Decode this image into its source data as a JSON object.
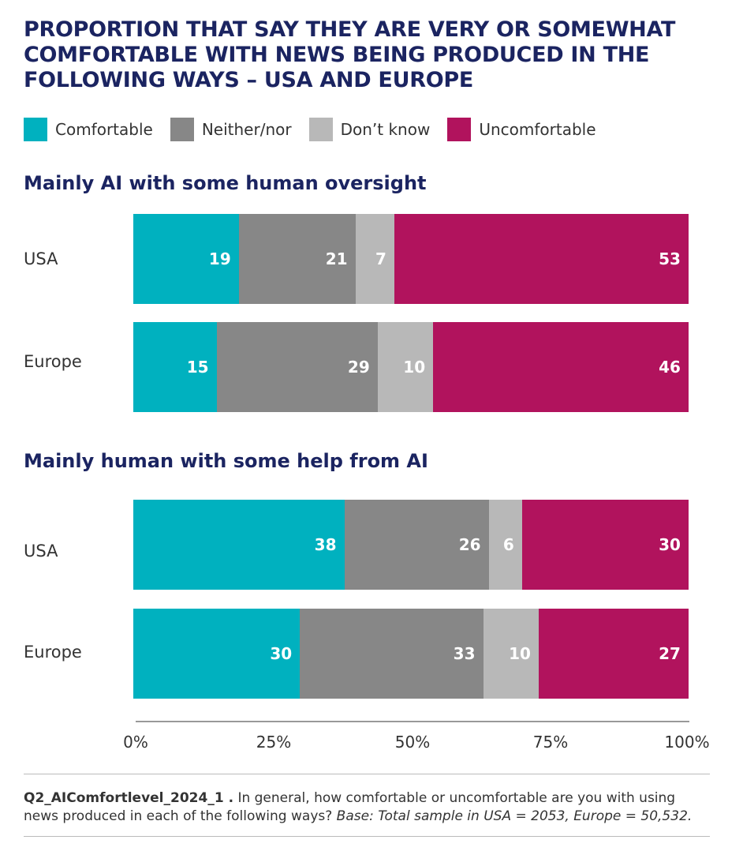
{
  "chart_data": {
    "type": "bar",
    "orientation": "horizontal",
    "stacked": true,
    "title": "PROPORTION THAT SAY THEY ARE VERY OR SOMEWHAT COMFORTABLE WITH NEWS BEING PRODUCED IN THE FOLLOWING WAYS – USA AND EUROPE",
    "legend": [
      {
        "name": "Comfortable",
        "color": "#00b1bf"
      },
      {
        "name": "Neither/nor",
        "color": "#878787"
      },
      {
        "name": "Don’t know",
        "color": "#b8b8b8"
      },
      {
        "name": "Uncomfortable",
        "color": "#b1135d"
      }
    ],
    "panels": [
      {
        "title": "Mainly AI with some human oversight",
        "rows": [
          {
            "label": "USA",
            "values": [
              19,
              21,
              7,
              53
            ]
          },
          {
            "label": "Europe",
            "values": [
              15,
              29,
              10,
              46
            ]
          }
        ]
      },
      {
        "title": "Mainly human with some help from AI",
        "rows": [
          {
            "label": "USA",
            "values": [
              38,
              26,
              6,
              30
            ]
          },
          {
            "label": "Europe",
            "values": [
              30,
              33,
              10,
              27
            ]
          }
        ]
      }
    ],
    "xlim": [
      0,
      100
    ],
    "xticks": [
      "0%",
      "25%",
      "50%",
      "75%",
      "100%"
    ]
  },
  "footnote": {
    "id": "Q2_AIComfortlevel_2024_1 .",
    "question": " In general, how comfortable or uncomfortable are you with using news produced in each of the following ways? ",
    "base": "Base: Total sample in USA = 2053, Europe = 50,532."
  }
}
